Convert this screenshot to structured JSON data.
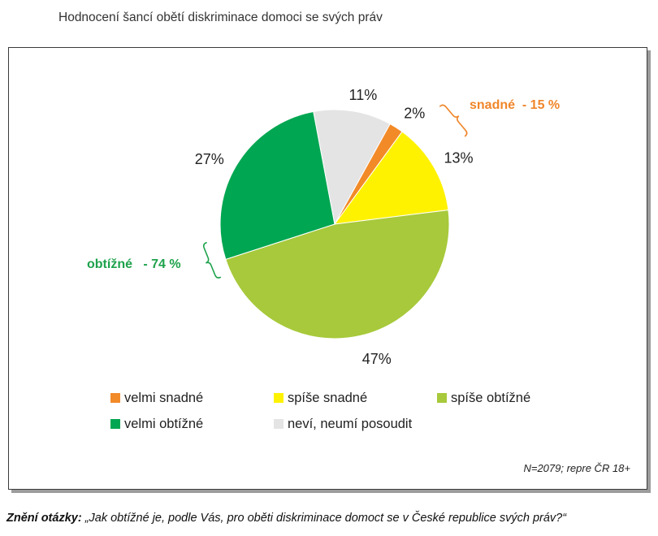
{
  "chart_data": {
    "type": "pie",
    "title": "Hodnocení šancí obětí diskriminace domoci se svých práv",
    "categories": [
      "velmi snadné",
      "spíše snadné",
      "spíše obtížné",
      "velmi obtížné",
      "neví, neumí posoudit"
    ],
    "values": [
      2,
      13,
      47,
      27,
      11
    ],
    "data_labels": [
      "2%",
      "13%",
      "47%",
      "27%",
      "11%"
    ],
    "colors": [
      "#F28A28",
      "#FFF200",
      "#A7C93B",
      "#00A651",
      "#E4E4E4"
    ],
    "legend": "bottom",
    "annotations": [
      {
        "text": "snadné  - 15 %",
        "color": "#F0862A"
      },
      {
        "text": "obtížné   - 74 %",
        "color": "#1EA24C"
      }
    ],
    "note": "N=2079; repre ČR 18+"
  },
  "footer": {
    "label": "Znění otázky:",
    "question": "„Jak obtížné je, podle Vás, pro oběti diskriminace domoct se v České republice svých práv?“"
  }
}
